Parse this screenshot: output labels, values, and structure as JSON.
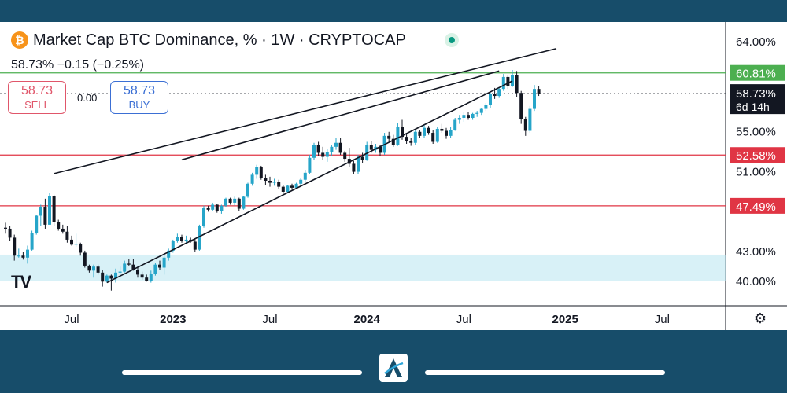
{
  "header": {
    "title": "Market Cap BTC Dominance, % · 1W · CRYPTOCAP",
    "price_line": "58.73%  −0.15 (−0.25%)",
    "btc_icon": "bitcoin-icon",
    "status_icon": "market-status-dot"
  },
  "trade": {
    "sell_value": "58.73",
    "sell_label": "SELL",
    "buy_value": "58.73",
    "buy_label": "BUY",
    "spread": "0.00"
  },
  "branding": {
    "tv_logo": "TV",
    "app_logo": "A"
  },
  "colors": {
    "up": "#26a5c9",
    "down": "#131722",
    "support": "#e03544",
    "resistance": "#4caf50",
    "zone": "#b8e6f0",
    "trend": "#131722"
  },
  "chart_data": {
    "type": "candlestick",
    "title": "Market Cap BTC Dominance, % · 1W · CRYPTOCAP",
    "price_scale_labels": [
      "64.00%",
      "55.00%",
      "51.00%",
      "43.00%",
      "40.00%"
    ],
    "time_labels": [
      "Jul",
      "2023",
      "Jul",
      "2024",
      "Jul",
      "2025",
      "Jul"
    ],
    "time_label_bold": [
      false,
      true,
      false,
      true,
      false,
      true,
      false
    ],
    "horizontal_lines": [
      {
        "label": "60.81%",
        "value": 60.81,
        "kind": "resistance"
      },
      {
        "label": "52.58%",
        "value": 52.58,
        "kind": "support"
      },
      {
        "label": "47.49%",
        "value": 47.49,
        "kind": "support"
      }
    ],
    "current_price": {
      "label": "58.73%",
      "value": 58.73,
      "countdown": "6d 14h"
    },
    "zone": {
      "from": 40.0,
      "to": 42.6
    },
    "series": [
      {
        "name": "BTC.D",
        "start_week": 0,
        "ohlc": [
          [
            45.3,
            45.8,
            44.7,
            45.2
          ],
          [
            45.2,
            45.5,
            44.0,
            44.3
          ],
          [
            44.3,
            44.6,
            42.0,
            42.5
          ],
          [
            42.5,
            43.2,
            42.3,
            42.5
          ],
          [
            42.5,
            42.9,
            42.1,
            42.3
          ],
          [
            42.3,
            43.5,
            41.7,
            43.1
          ],
          [
            43.1,
            45.0,
            43.0,
            44.8
          ],
          [
            44.8,
            46.6,
            44.6,
            46.5
          ],
          [
            46.5,
            47.6,
            45.5,
            47.4
          ],
          [
            47.4,
            48.2,
            45.2,
            45.6
          ],
          [
            45.6,
            48.8,
            45.6,
            48.5
          ],
          [
            48.5,
            48.6,
            45.5,
            45.9
          ],
          [
            45.9,
            46.1,
            45.0,
            45.2
          ],
          [
            45.2,
            45.6,
            44.7,
            44.9
          ],
          [
            44.9,
            45.5,
            43.8,
            44.1
          ],
          [
            44.1,
            44.5,
            43.5,
            43.6
          ],
          [
            43.6,
            44.7,
            43.4,
            43.7
          ],
          [
            43.7,
            43.8,
            42.5,
            42.8
          ],
          [
            42.8,
            43.0,
            41.3,
            41.5
          ],
          [
            41.5,
            41.6,
            40.8,
            41.0
          ],
          [
            41.0,
            41.6,
            40.3,
            41.4
          ],
          [
            41.4,
            41.6,
            40.6,
            40.8
          ],
          [
            40.8,
            41.1,
            39.4,
            39.9
          ],
          [
            39.9,
            40.6,
            39.8,
            40.5
          ],
          [
            40.5,
            40.6,
            39.0,
            40.2
          ],
          [
            40.2,
            41.2,
            39.8,
            40.8
          ],
          [
            40.8,
            41.4,
            40.3,
            40.9
          ],
          [
            40.9,
            42.0,
            40.8,
            41.7
          ],
          [
            41.7,
            42.2,
            41.5,
            41.6
          ],
          [
            41.6,
            42.2,
            41.0,
            41.1
          ],
          [
            41.1,
            41.4,
            40.3,
            40.6
          ],
          [
            40.6,
            40.9,
            40.1,
            40.3
          ],
          [
            40.3,
            40.6,
            39.9,
            40.0
          ],
          [
            40.0,
            41.0,
            39.8,
            40.7
          ],
          [
            40.7,
            41.8,
            40.5,
            41.6
          ],
          [
            41.6,
            42.0,
            41.1,
            41.3
          ],
          [
            41.3,
            42.6,
            40.6,
            42.3
          ],
          [
            42.3,
            43.2,
            42.0,
            43.0
          ],
          [
            43.0,
            44.1,
            42.8,
            44.0
          ],
          [
            44.0,
            44.7,
            43.8,
            44.4
          ],
          [
            44.4,
            44.6,
            43.8,
            44.0
          ],
          [
            44.0,
            44.5,
            43.7,
            44.1
          ],
          [
            44.1,
            44.3,
            43.8,
            43.9
          ],
          [
            43.9,
            44.2,
            42.9,
            43.1
          ],
          [
            43.1,
            45.6,
            43.0,
            45.5
          ],
          [
            45.5,
            47.5,
            45.3,
            47.3
          ],
          [
            47.3,
            47.5,
            46.9,
            47.1
          ],
          [
            47.1,
            47.8,
            47.0,
            47.6
          ],
          [
            47.6,
            47.7,
            46.8,
            47.0
          ],
          [
            47.0,
            47.6,
            46.7,
            47.5
          ],
          [
            47.5,
            48.3,
            47.4,
            48.2
          ],
          [
            48.2,
            48.3,
            47.6,
            47.8
          ],
          [
            47.8,
            48.4,
            47.5,
            48.2
          ],
          [
            48.2,
            48.3,
            47.0,
            47.2
          ],
          [
            47.2,
            48.5,
            47.1,
            48.4
          ],
          [
            48.4,
            49.8,
            48.3,
            49.7
          ],
          [
            49.7,
            50.8,
            49.5,
            50.6
          ],
          [
            50.6,
            51.6,
            50.2,
            51.4
          ],
          [
            51.4,
            51.5,
            50.1,
            50.3
          ],
          [
            50.3,
            50.6,
            49.6,
            50.0
          ],
          [
            50.0,
            50.4,
            49.4,
            49.8
          ],
          [
            49.8,
            50.2,
            49.5,
            49.9
          ],
          [
            49.9,
            50.1,
            49.2,
            49.4
          ],
          [
            49.4,
            49.6,
            48.7,
            48.9
          ],
          [
            48.9,
            49.6,
            48.8,
            49.5
          ],
          [
            49.5,
            49.7,
            49.1,
            49.3
          ],
          [
            49.3,
            49.8,
            49.2,
            49.7
          ],
          [
            49.7,
            50.3,
            49.5,
            50.1
          ],
          [
            50.1,
            51.1,
            49.9,
            50.8
          ],
          [
            50.8,
            52.6,
            50.7,
            52.3
          ],
          [
            52.3,
            53.8,
            52.1,
            53.6
          ],
          [
            53.6,
            53.9,
            52.5,
            52.8
          ],
          [
            52.8,
            53.4,
            52.1,
            52.4
          ],
          [
            52.4,
            53.2,
            51.9,
            52.9
          ],
          [
            52.9,
            53.6,
            52.5,
            53.4
          ],
          [
            53.4,
            54.3,
            53.1,
            53.8
          ],
          [
            53.8,
            54.3,
            52.6,
            52.8
          ],
          [
            52.8,
            53.0,
            51.9,
            52.2
          ],
          [
            52.2,
            53.3,
            51.4,
            51.7
          ],
          [
            51.7,
            52.0,
            50.7,
            50.9
          ],
          [
            50.9,
            52.6,
            50.7,
            52.4
          ],
          [
            52.4,
            52.8,
            51.8,
            52.1
          ],
          [
            52.1,
            53.9,
            52.0,
            53.6
          ],
          [
            53.6,
            54.0,
            52.8,
            53.1
          ],
          [
            53.1,
            53.7,
            52.8,
            53.4
          ],
          [
            53.4,
            53.6,
            52.5,
            52.8
          ],
          [
            52.8,
            54.8,
            52.6,
            54.5
          ],
          [
            54.5,
            54.9,
            53.9,
            54.2
          ],
          [
            54.2,
            54.6,
            53.4,
            53.6
          ],
          [
            53.6,
            55.8,
            53.5,
            55.4
          ],
          [
            55.4,
            56.1,
            54.1,
            54.4
          ],
          [
            54.4,
            54.8,
            53.7,
            54.0
          ],
          [
            54.0,
            54.3,
            53.5,
            53.8
          ],
          [
            53.8,
            55.2,
            53.6,
            54.9
          ],
          [
            54.9,
            55.1,
            54.3,
            54.5
          ],
          [
            54.5,
            55.6,
            54.3,
            55.3
          ],
          [
            55.3,
            55.5,
            54.6,
            54.8
          ],
          [
            54.8,
            55.1,
            53.7,
            53.9
          ],
          [
            53.9,
            55.4,
            53.8,
            55.2
          ],
          [
            55.2,
            55.7,
            54.8,
            55.0
          ],
          [
            55.0,
            55.3,
            54.2,
            54.5
          ],
          [
            54.5,
            55.4,
            54.3,
            55.1
          ],
          [
            55.1,
            56.3,
            55.0,
            56.1
          ],
          [
            56.1,
            56.6,
            55.7,
            56.3
          ],
          [
            56.3,
            56.9,
            55.9,
            56.6
          ],
          [
            56.6,
            56.9,
            56.1,
            56.3
          ],
          [
            56.3,
            56.8,
            56.1,
            56.7
          ],
          [
            56.7,
            57.0,
            56.4,
            56.8
          ],
          [
            56.8,
            57.3,
            56.6,
            57.2
          ],
          [
            57.2,
            57.8,
            57.0,
            57.6
          ],
          [
            57.6,
            58.9,
            57.3,
            58.7
          ],
          [
            58.7,
            59.3,
            58.2,
            58.5
          ],
          [
            58.5,
            59.4,
            58.3,
            59.2
          ],
          [
            59.2,
            60.7,
            59.0,
            60.4
          ],
          [
            60.4,
            60.6,
            59.2,
            59.5
          ],
          [
            59.5,
            61.1,
            59.4,
            60.6
          ],
          [
            60.6,
            61.0,
            58.4,
            58.8
          ],
          [
            58.8,
            59.0,
            55.7,
            56.2
          ],
          [
            56.2,
            56.4,
            54.5,
            55.0
          ],
          [
            55.0,
            57.5,
            54.8,
            57.2
          ],
          [
            57.2,
            59.6,
            57.0,
            59.2
          ],
          [
            59.2,
            59.5,
            58.5,
            58.73
          ]
        ]
      }
    ],
    "trendlines": [
      {
        "name": "upper-trendline",
        "from_week": 11,
        "from_value": 50.72,
        "to_week": 125,
        "to_value": 63.25
      },
      {
        "name": "lower-trendline",
        "from_week": 23,
        "from_value": 39.8,
        "to_week": 115,
        "to_value": 60.0
      },
      {
        "name": "upper-channel-line",
        "from_week": 40,
        "from_value": 52.1,
        "to_week": 112,
        "to_value": 61.0
      }
    ]
  }
}
